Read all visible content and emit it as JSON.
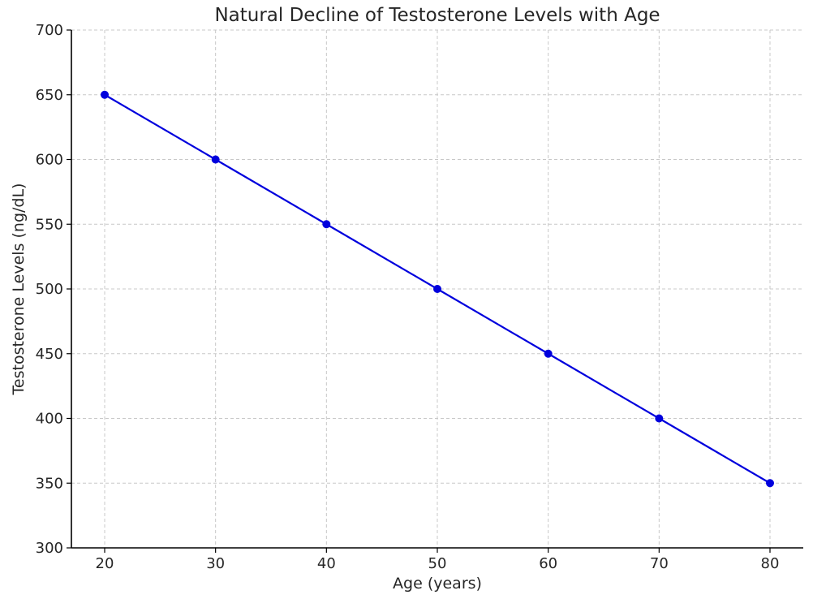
{
  "chart_data": {
    "type": "line",
    "title": "Natural Decline of Testosterone Levels with Age",
    "xlabel": "Age (years)",
    "ylabel": "Testosterone Levels (ng/dL)",
    "x": [
      20,
      30,
      40,
      50,
      60,
      70,
      80
    ],
    "series": [
      {
        "name": "",
        "values": [
          650,
          600,
          550,
          500,
          450,
          400,
          350
        ],
        "color": "#0000dd",
        "marker": "circle"
      }
    ],
    "xlim": [
      17,
      83
    ],
    "ylim": [
      300,
      700
    ],
    "xticks": [
      20,
      30,
      40,
      50,
      60,
      70,
      80
    ],
    "yticks": [
      300,
      350,
      400,
      450,
      500,
      550,
      600,
      650,
      700
    ],
    "grid": true,
    "legend": "none"
  }
}
